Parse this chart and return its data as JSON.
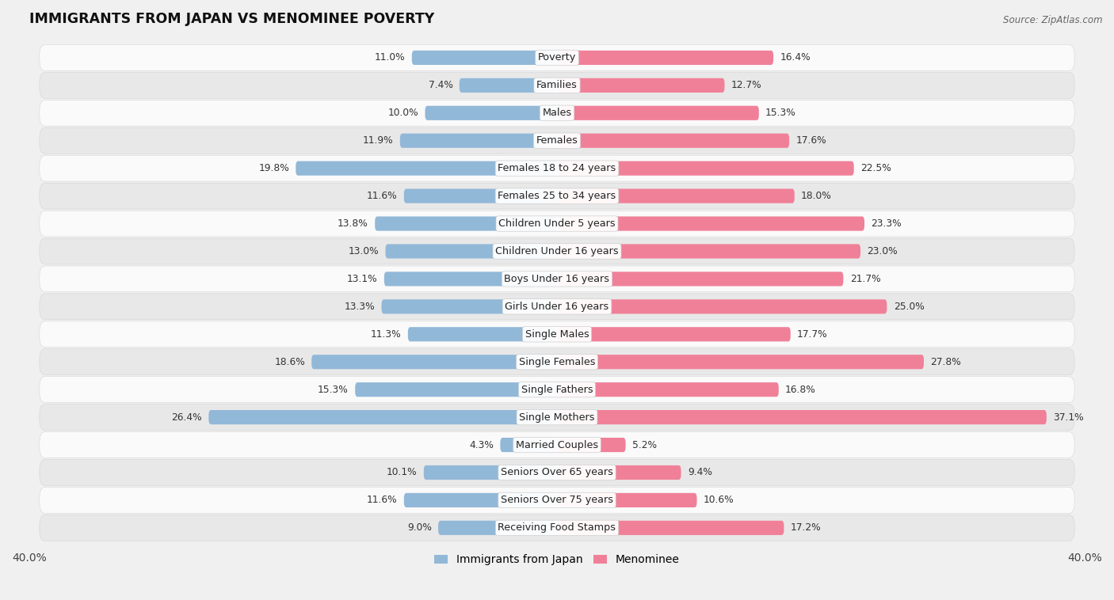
{
  "title": "IMMIGRANTS FROM JAPAN VS MENOMINEE POVERTY",
  "source": "Source: ZipAtlas.com",
  "categories": [
    "Poverty",
    "Families",
    "Males",
    "Females",
    "Females 18 to 24 years",
    "Females 25 to 34 years",
    "Children Under 5 years",
    "Children Under 16 years",
    "Boys Under 16 years",
    "Girls Under 16 years",
    "Single Males",
    "Single Females",
    "Single Fathers",
    "Single Mothers",
    "Married Couples",
    "Seniors Over 65 years",
    "Seniors Over 75 years",
    "Receiving Food Stamps"
  ],
  "japan_values": [
    11.0,
    7.4,
    10.0,
    11.9,
    19.8,
    11.6,
    13.8,
    13.0,
    13.1,
    13.3,
    11.3,
    18.6,
    15.3,
    26.4,
    4.3,
    10.1,
    11.6,
    9.0
  ],
  "menominee_values": [
    16.4,
    12.7,
    15.3,
    17.6,
    22.5,
    18.0,
    23.3,
    23.0,
    21.7,
    25.0,
    17.7,
    27.8,
    16.8,
    37.1,
    5.2,
    9.4,
    10.6,
    17.2
  ],
  "japan_color": "#92b8d8",
  "menominee_color": "#f08098",
  "axis_limit": 40.0,
  "background_color": "#f0f0f0",
  "row_bg_light": "#fafafa",
  "row_bg_dark": "#e8e8e8",
  "bar_height": 0.52,
  "label_fontsize": 9.2,
  "value_fontsize": 8.8,
  "title_fontsize": 12.5,
  "legend_fontsize": 10
}
